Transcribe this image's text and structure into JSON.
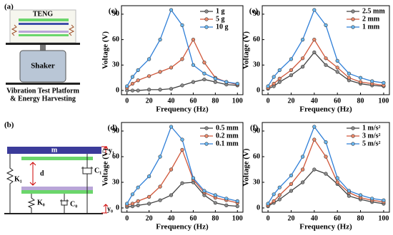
{
  "diagrams": {
    "a": {
      "label": "(a)",
      "teng": "TENG",
      "shaker": "Shaker",
      "caption1": "Vibration Test Platform",
      "caption2": "& Energy Harvesting"
    },
    "b": {
      "label": "(b)",
      "mass": "m",
      "y1": "y₁",
      "d": "d",
      "k1": "K₁",
      "c1": "C₁",
      "k0": "K₀",
      "c0": "C₀",
      "y0": "y₀"
    }
  },
  "chart_data": [
    {
      "type": "line",
      "label": "(c)",
      "xlabel": "Frequency (Hz)",
      "ylabel": "Voltage (V)",
      "x": [
        0,
        5,
        10,
        20,
        30,
        40,
        50,
        60,
        70,
        80,
        90,
        100
      ],
      "xlim": [
        -5,
        105
      ],
      "xticks": [
        0,
        20,
        40,
        60,
        80,
        100
      ],
      "ylim": [
        -5,
        100
      ],
      "yticks": [
        0,
        30,
        60,
        90
      ],
      "legend": "top-right",
      "series": [
        {
          "name": "1 g",
          "color": "#404040",
          "values": [
            0,
            0,
            0,
            1,
            1,
            2,
            6,
            10,
            13,
            10,
            7,
            6
          ]
        },
        {
          "name": "5 g",
          "color": "#d0573a",
          "values": [
            3,
            8,
            12,
            17,
            22,
            27,
            37,
            60,
            33,
            15,
            10,
            7
          ]
        },
        {
          "name": "10 g",
          "color": "#2f7fd8",
          "values": [
            5,
            16,
            24,
            37,
            60,
            95,
            77,
            30,
            20,
            14,
            10,
            8
          ]
        }
      ]
    },
    {
      "type": "line",
      "label": "(e)",
      "xlabel": "Frequency (Hz)",
      "ylabel": "Voltage (V)",
      "x": [
        0,
        5,
        10,
        20,
        30,
        40,
        50,
        60,
        70,
        80,
        90,
        100
      ],
      "xlim": [
        -5,
        105
      ],
      "xticks": [
        0,
        20,
        40,
        60,
        80,
        100
      ],
      "ylim": [
        -5,
        100
      ],
      "yticks": [
        0,
        30,
        60,
        90
      ],
      "legend": "top-right",
      "series": [
        {
          "name": "2.5 mm",
          "color": "#404040",
          "values": [
            2,
            5,
            10,
            18,
            28,
            45,
            30,
            22,
            12,
            8,
            6,
            5
          ]
        },
        {
          "name": "2 mm",
          "color": "#d0573a",
          "values": [
            3,
            8,
            14,
            24,
            38,
            60,
            38,
            27,
            15,
            10,
            8,
            6
          ]
        },
        {
          "name": "1 mm",
          "color": "#2f7fd8",
          "values": [
            5,
            16,
            24,
            37,
            60,
            95,
            77,
            35,
            20,
            15,
            11,
            9
          ]
        }
      ]
    },
    {
      "type": "line",
      "label": "(d)",
      "xlabel": "Frequency (Hz)",
      "ylabel": "Voltage (V)",
      "x": [
        0,
        5,
        10,
        20,
        30,
        40,
        50,
        60,
        70,
        80,
        90,
        100
      ],
      "xlim": [
        -5,
        105
      ],
      "xticks": [
        0,
        20,
        40,
        60,
        80,
        100
      ],
      "ylim": [
        -5,
        100
      ],
      "yticks": [
        0,
        30,
        60,
        90
      ],
      "legend": "top-right",
      "series": [
        {
          "name": "0.5 mm",
          "color": "#404040",
          "values": [
            1,
            2,
            3,
            5,
            9,
            15,
            29,
            30,
            15,
            6,
            3,
            2
          ]
        },
        {
          "name": "0.2 mm",
          "color": "#d0573a",
          "values": [
            3,
            5,
            8,
            13,
            25,
            45,
            68,
            33,
            18,
            12,
            9,
            6
          ]
        },
        {
          "name": "0.1 mm",
          "color": "#2f7fd8",
          "values": [
            5,
            16,
            24,
            37,
            60,
            95,
            80,
            35,
            20,
            15,
            11,
            8
          ]
        }
      ]
    },
    {
      "type": "line",
      "label": "(f)",
      "xlabel": "Frequency (Hz)",
      "ylabel": "Voltage (V)",
      "x": [
        0,
        5,
        10,
        20,
        30,
        40,
        50,
        60,
        70,
        80,
        90,
        100
      ],
      "xlim": [
        -5,
        105
      ],
      "xticks": [
        0,
        20,
        40,
        60,
        80,
        100
      ],
      "ylim": [
        -5,
        100
      ],
      "yticks": [
        0,
        30,
        60,
        90
      ],
      "legend": "top-right",
      "series": [
        {
          "name": "1 m/s²",
          "color": "#404040",
          "values": [
            2,
            6,
            10,
            20,
            30,
            45,
            40,
            28,
            14,
            10,
            7,
            5
          ]
        },
        {
          "name": "3 m/s²",
          "color": "#d0573a",
          "values": [
            3,
            8,
            15,
            28,
            45,
            80,
            60,
            30,
            18,
            12,
            9,
            7
          ]
        },
        {
          "name": "5 m/s²",
          "color": "#2f7fd8",
          "values": [
            5,
            16,
            24,
            38,
            60,
            95,
            77,
            35,
            20,
            15,
            11,
            9
          ]
        }
      ]
    }
  ]
}
